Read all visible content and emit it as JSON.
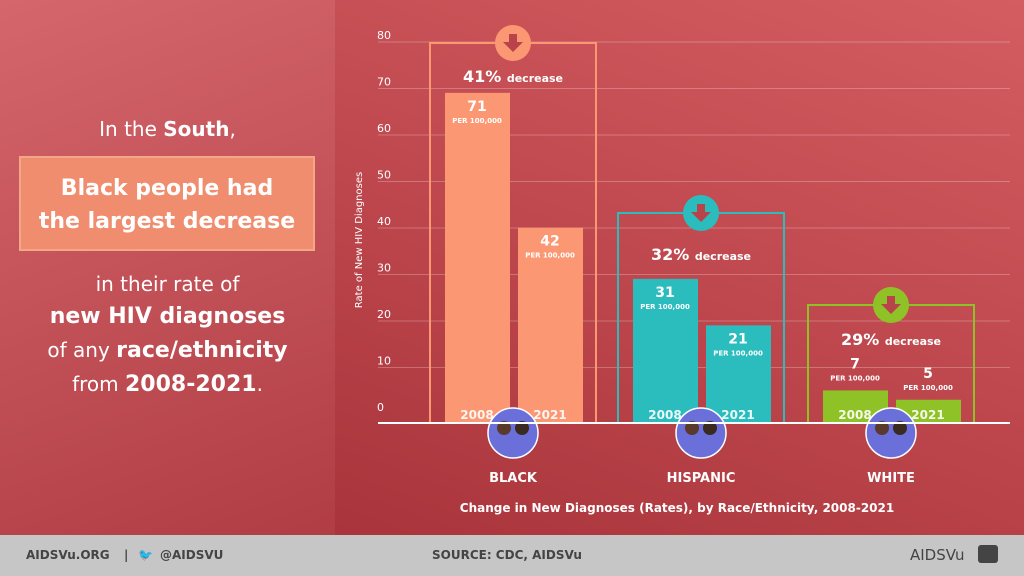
{
  "left": {
    "line1a": "In the ",
    "line1b": "South",
    "line1c": ",",
    "highlight1": "Black people had",
    "highlight2": "the largest decrease",
    "line3": "in their rate of",
    "line4": "new HIV diagnoses",
    "line5a": "of any ",
    "line5b": "race/ethnicity",
    "line6a": "from ",
    "line6b": "2008-2021",
    "line6c": "."
  },
  "footer": {
    "site": "AIDSVu.ORG",
    "sep": "|",
    "twitter": "@AIDSVU",
    "source": "SOURCE: CDC, AIDSVu",
    "logo": "AIDSVu"
  },
  "chart_data": {
    "type": "bar",
    "title": "Change in New Diagnoses (Rates), by Race/Ethnicity, 2008-2021",
    "ylabel": "Rate of New HIV Diagnoses",
    "ylim": [
      0,
      80
    ],
    "yticks": [
      0,
      10,
      20,
      30,
      40,
      50,
      60,
      70,
      80
    ],
    "unit_label": "PER 100,000",
    "groups": [
      {
        "name": "BLACK",
        "color": "#fb9873",
        "values": [
          71,
          42
        ],
        "years": [
          "2008",
          "2021"
        ],
        "change_pct": "41%",
        "change_label": "decrease"
      },
      {
        "name": "HISPANIC",
        "color": "#2bbcbe",
        "values": [
          31,
          21
        ],
        "years": [
          "2008",
          "2021"
        ],
        "change_pct": "32%",
        "change_label": "decrease"
      },
      {
        "name": "WHITE",
        "color": "#8fc227",
        "values": [
          7,
          5
        ],
        "years": [
          "2008",
          "2021"
        ],
        "change_pct": "29%",
        "change_label": "decrease"
      }
    ]
  }
}
